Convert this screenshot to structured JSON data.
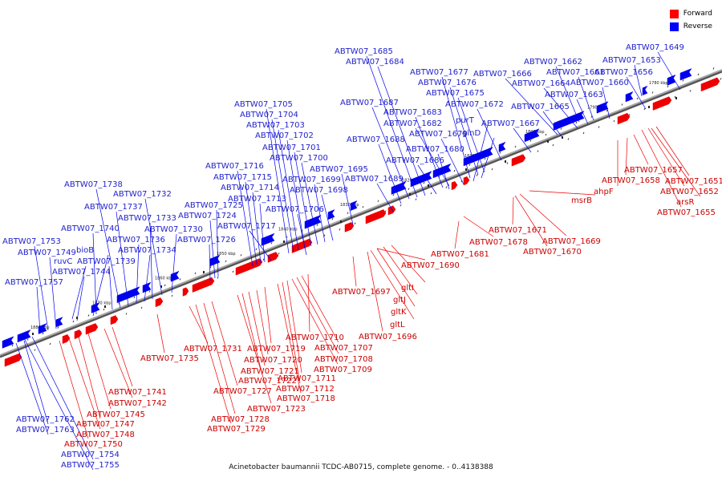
{
  "legend": [
    {
      "label": "Forward",
      "color": "#ff0000"
    },
    {
      "label": "Reverse",
      "color": "#0000ff"
    }
  ],
  "caption": "Acinetobacter baumannii TCDC-AB0715, complete genome. - 0..4138388",
  "colors": {
    "forward": "#ee0000",
    "reverse": "#0000ee",
    "axis": "#888888",
    "label_forward": "#cc0000",
    "label_reverse": "#2222cc"
  },
  "scale_labels": [
    "1780 kbp",
    "1790 kbp",
    "1800 kbp",
    "1810 kbp",
    "1820 kbp",
    "1830 kbp",
    "1840 kbp",
    "1850 kbp",
    "1860 kbp",
    "1870 kbp",
    "1880 kbp"
  ],
  "reverse_labels": [
    "ABTW07_1649",
    "ABTW07_1653",
    "ABTW07_1656",
    "ABTW07_1662",
    "ABTW07_1660",
    "ABTW07_1661",
    "ABTW07_1663",
    "ABTW07_1664",
    "ABTW07_1665",
    "ABTW07_1666",
    "ABTW07_1667",
    "ABTW07_1672",
    "ABTW07_1675",
    "ABTW07_1676",
    "ABTW07_1677",
    "ABTW07_1679",
    "ABTW07_1680",
    "ABTW07_1682",
    "ABTW07_1683",
    "ABTW07_1684",
    "ABTW07_1685",
    "ABTW07_1686",
    "ABTW07_1687",
    "ABTW07_1688",
    "ABTW07_1689",
    "ABTW07_1695",
    "ABTW07_1698",
    "ABTW07_1699",
    "ABTW07_1700",
    "ABTW07_1701",
    "ABTW07_1702",
    "ABTW07_1703",
    "ABTW07_1704",
    "ABTW07_1705",
    "ABTW07_1706",
    "ABTW07_1713",
    "ABTW07_1714",
    "ABTW07_1715",
    "ABTW07_1716",
    "ABTW07_1717",
    "ABTW07_1724",
    "ABTW07_1725",
    "ABTW07_1726",
    "ABTW07_1730",
    "ABTW07_1732",
    "ABTW07_1733",
    "ABTW07_1734",
    "ABTW07_1736",
    "ABTW07_1737",
    "ABTW07_1738",
    "ABTW07_1739",
    "ABTW07_1740",
    "ABTW07_1744",
    "ABTW07_1749",
    "ABTW07_1753",
    "ABTW07_1754",
    "ABTW07_1755",
    "ABTW07_1757",
    "ABTW07_1762",
    "ABTW07_1763",
    "bioB",
    "ruvC",
    "purT",
    "glnD"
  ],
  "forward_labels": [
    "ABTW07_1651",
    "ABTW07_1652",
    "ABTW07_1655",
    "ABTW07_1657",
    "ABTW07_1658",
    "ABTW07_1669",
    "ABTW07_1670",
    "ABTW07_1671",
    "ABTW07_1678",
    "ABTW07_1681",
    "ABTW07_1690",
    "ABTW07_1696",
    "ABTW07_1697",
    "ABTW07_1707",
    "ABTW07_1708",
    "ABTW07_1709",
    "ABTW07_1710",
    "ABTW07_1711",
    "ABTW07_1712",
    "ABTW07_1718",
    "ABTW07_1719",
    "ABTW07_1720",
    "ABTW07_1721",
    "ABTW07_1722",
    "ABTW07_1723",
    "ABTW07_1727",
    "ABTW07_1728",
    "ABTW07_1729",
    "ABTW07_1731",
    "ABTW07_1735",
    "ABTW07_1741",
    "ABTW07_1742",
    "ABTW07_1745",
    "ABTW07_1747",
    "ABTW07_1748",
    "ABTW07_1750",
    "ahpF",
    "msrB",
    "arsR",
    "gltI",
    "gltJ",
    "gltK",
    "gltL"
  ]
}
